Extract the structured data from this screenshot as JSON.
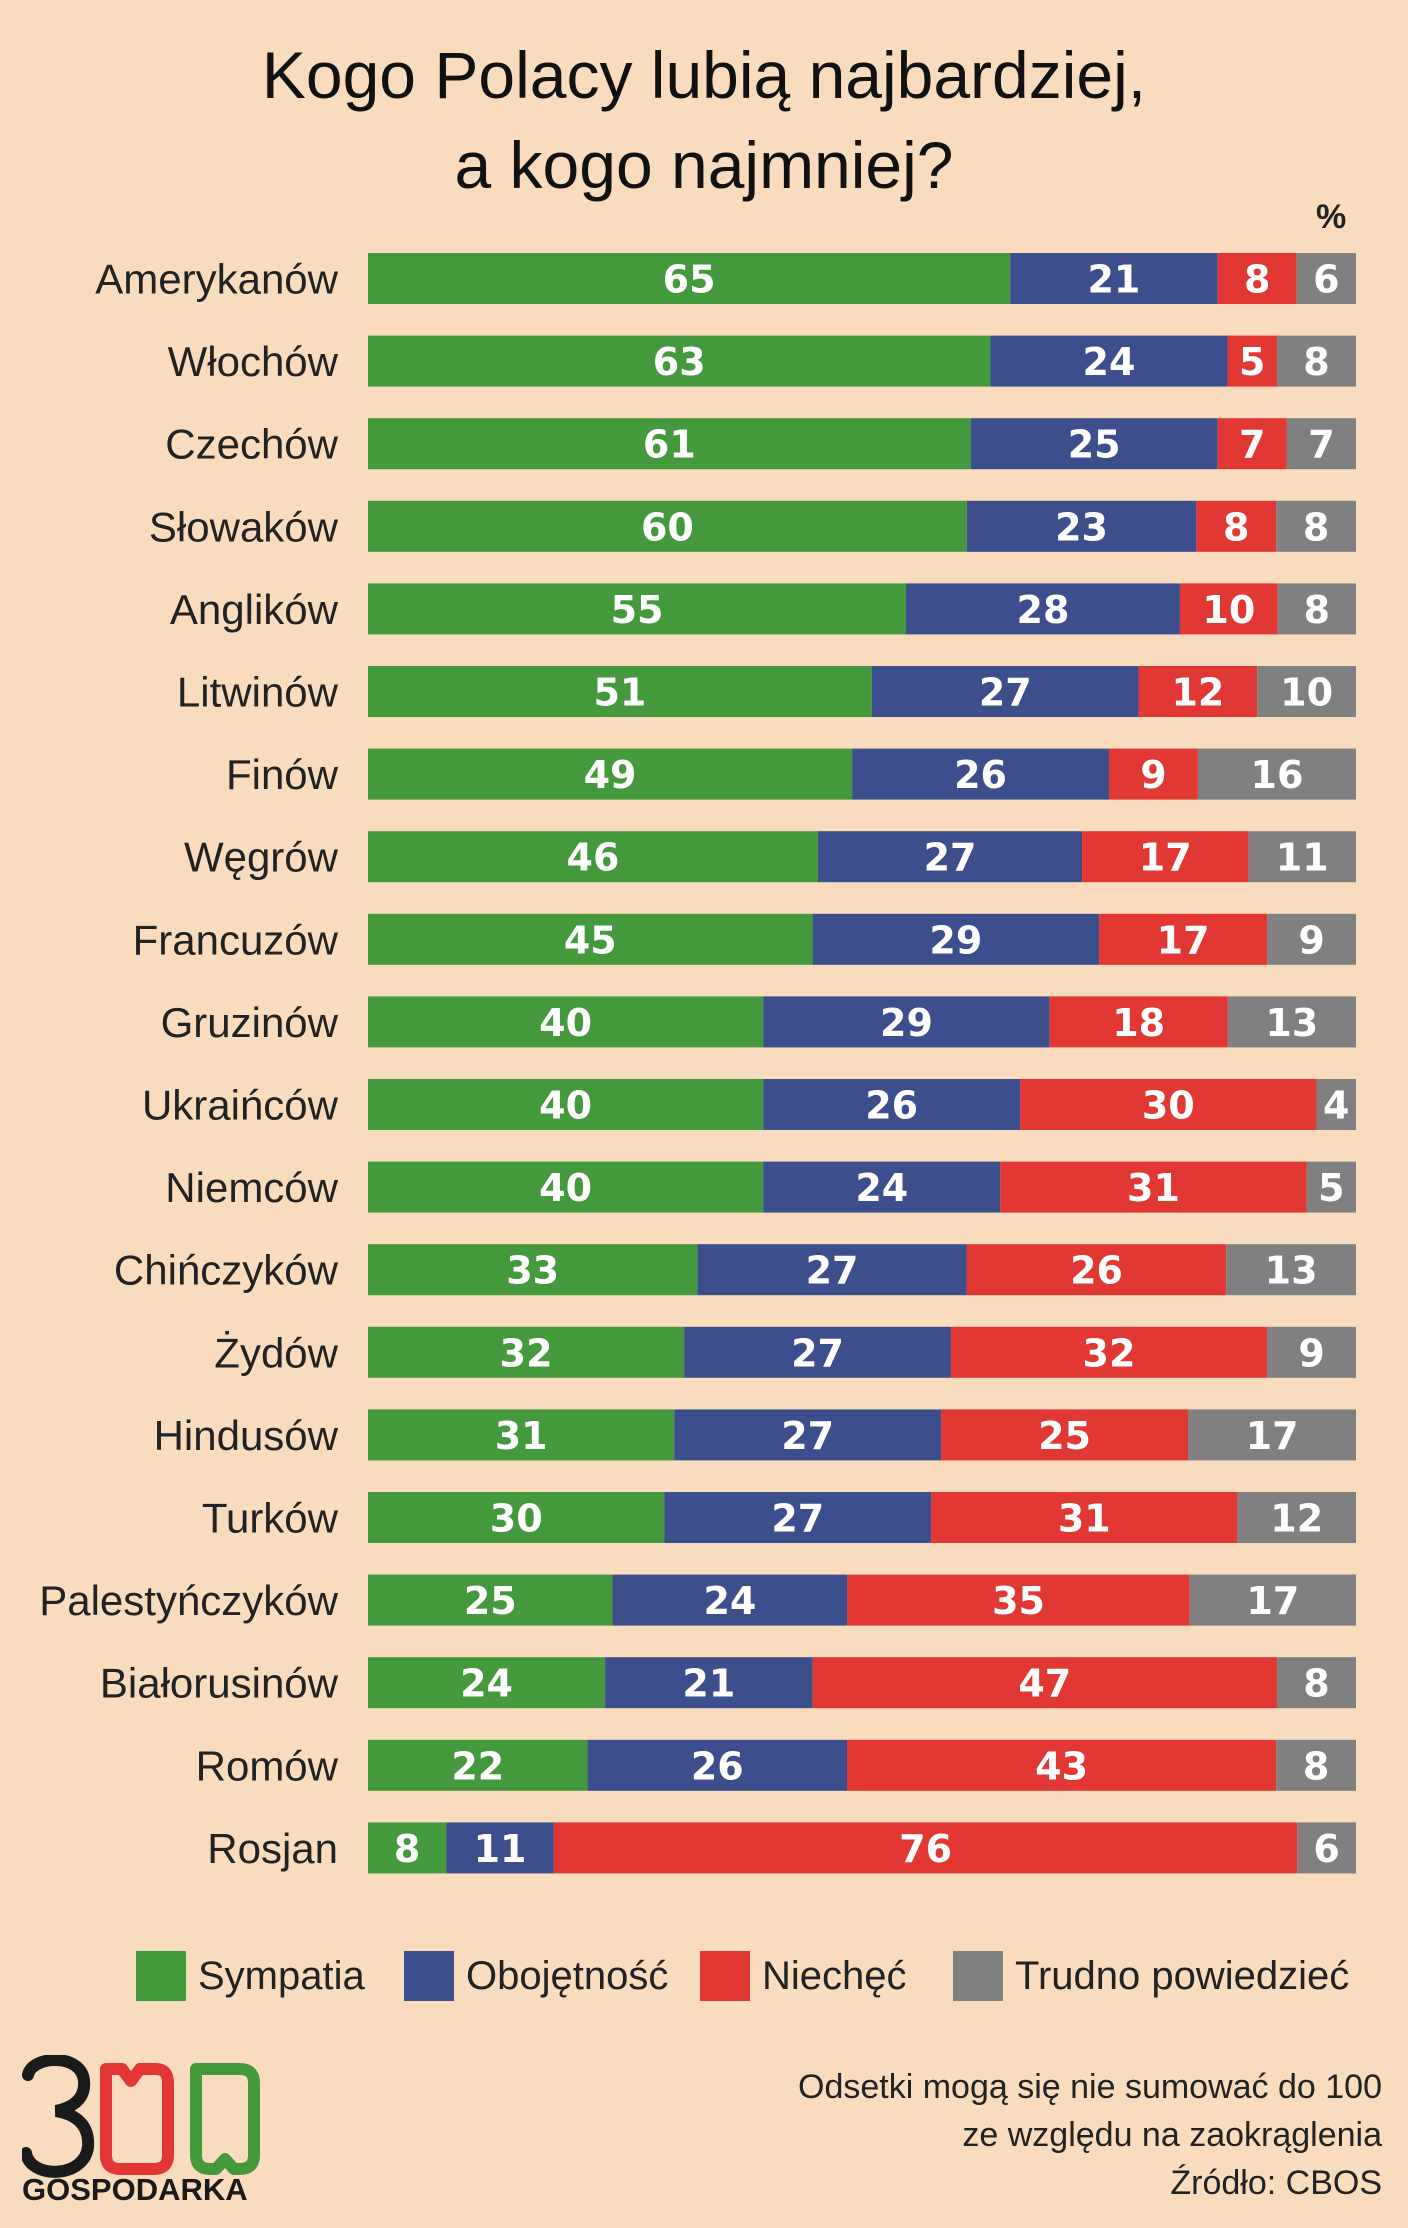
{
  "title": {
    "line1": "Kogo Polacy lubią najbardziej,",
    "line2": "a kogo najmniej?"
  },
  "chart_data": {
    "type": "bar",
    "orientation": "horizontal",
    "stacked": true,
    "unit": "%",
    "categories": [
      "Amerykanów",
      "Włochów",
      "Czechów",
      "Słowaków",
      "Anglików",
      "Litwinów",
      "Finów",
      "Węgrów",
      "Francuzów",
      "Gruzinów",
      "Ukraińców",
      "Niemców",
      "Chińczyków",
      "Żydów",
      "Hindusów",
      "Turków",
      "Palestyńczyków",
      "Białorusinów",
      "Romów",
      "Rosjan"
    ],
    "series": [
      {
        "name": "Sympatia",
        "color": "#43993b",
        "values": [
          65,
          63,
          61,
          60,
          55,
          51,
          49,
          46,
          45,
          40,
          40,
          40,
          33,
          32,
          31,
          30,
          25,
          24,
          22,
          8
        ]
      },
      {
        "name": "Obojętność",
        "color": "#3c4f8c",
        "values": [
          21,
          24,
          25,
          23,
          28,
          27,
          26,
          27,
          29,
          29,
          26,
          24,
          27,
          27,
          27,
          27,
          24,
          21,
          26,
          11
        ]
      },
      {
        "name": "Niechęć",
        "color": "#e23834",
        "values": [
          8,
          5,
          7,
          8,
          10,
          12,
          9,
          17,
          17,
          18,
          30,
          31,
          26,
          32,
          25,
          31,
          35,
          47,
          43,
          76
        ]
      },
      {
        "name": "Trudno powiedzieć",
        "color": "#808080",
        "values": [
          6,
          8,
          7,
          8,
          8,
          10,
          16,
          11,
          9,
          13,
          4,
          5,
          13,
          9,
          17,
          12,
          17,
          8,
          8,
          6
        ]
      }
    ],
    "legend_position": "bottom",
    "grid": false
  },
  "footer": {
    "logo_digits": "300",
    "logo_word": "GOSPODARKA",
    "note_line1": "Odsetki mogą się nie sumować do 100",
    "note_line2": "ze względu na zaokrąglenia",
    "source": "Źródło: CBOS"
  }
}
